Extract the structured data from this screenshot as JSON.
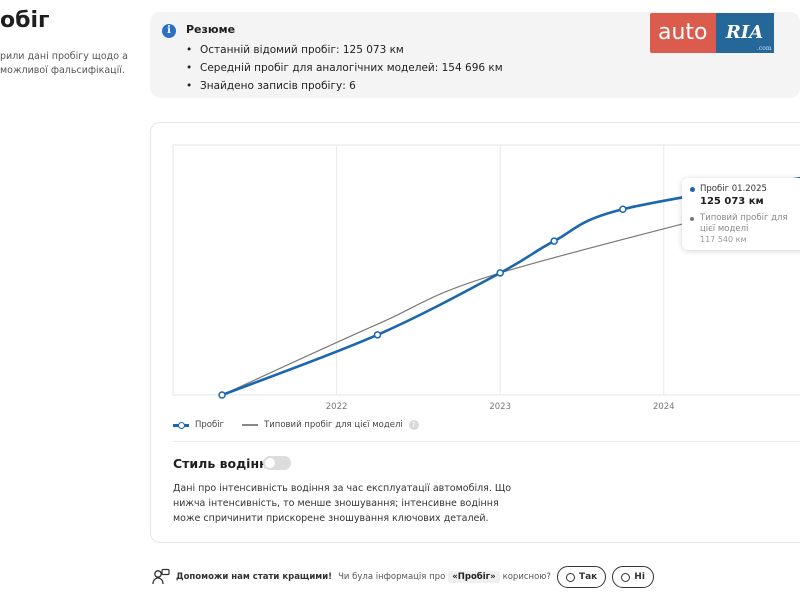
{
  "left": {
    "title": "обіг",
    "description": "рили дані пробігу щодо а можливої фальсифікації."
  },
  "summary": {
    "title": "Резюме",
    "items": [
      "Останній відомий пробіг: 125 073 км",
      "Середній пробіг для аналогічних моделей: 154 696 км",
      "Знайдено записів пробігу: 6"
    ]
  },
  "logo": {
    "left": "auto",
    "right": "RIA",
    "suffix": ".com"
  },
  "chart": {
    "legend_mileage": "Пробіг",
    "legend_typical": "Типовий пробіг для цієї моделі",
    "tooltip": {
      "label1": "Пробіг 01.2025",
      "value1": "125 073 км",
      "label2": "Типовий пробіг для цієї моделі",
      "value2": "117 540 км"
    }
  },
  "chart_data": {
    "type": "line",
    "x_ticks": [
      "2022",
      "2023",
      "2024"
    ],
    "series": [
      {
        "name": "Пробіг",
        "color": "#1b66b0",
        "points": [
          [
            2021.3,
            0
          ],
          [
            2022.25,
            34000
          ],
          [
            2023.0,
            69000
          ],
          [
            2023.33,
            87000
          ],
          [
            2023.75,
            105000
          ],
          [
            2025.0,
            125073
          ]
        ]
      },
      {
        "name": "Типовий пробіг для цієї моделі",
        "color": "#7a7a7a",
        "points": [
          [
            2021.3,
            0
          ],
          [
            2022.25,
            40000
          ],
          [
            2023.0,
            69000
          ],
          [
            2025.0,
            117540
          ]
        ]
      }
    ],
    "ylim": [
      0,
      130000
    ],
    "grid": "vertical"
  },
  "driving_style": {
    "title": "Стиль водіння",
    "description": "Дані про інтенсивність водіння за час експлуатації автомобіля. Що нижча інтенсивність, то менше зношування; інтенсивне водіння може спричинити прискорене зношування ключових деталей."
  },
  "feedback": {
    "bold": "Допоможи нам стати кращими!",
    "question": "Чи була інформація про",
    "pill": "«Пробіг»",
    "question_end": "корисною?",
    "yes": "Так",
    "no": "Ні"
  }
}
